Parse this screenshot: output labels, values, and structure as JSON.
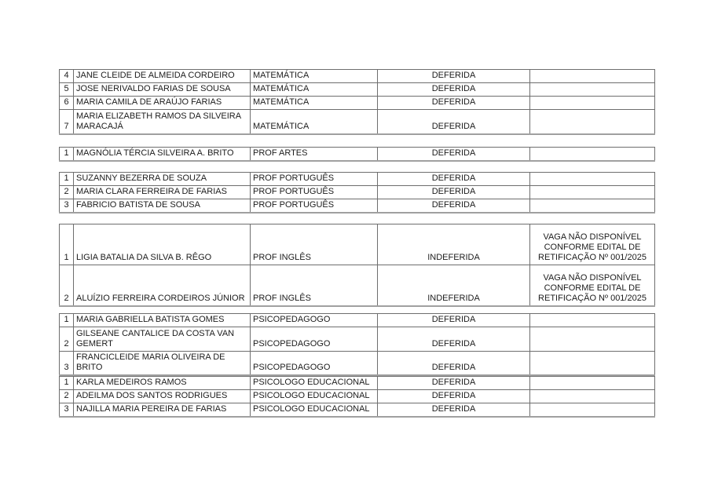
{
  "tables": [
    {
      "rows": [
        {
          "num": "4",
          "nome": "JANE CLEIDE DE ALMEIDA CORDEIRO",
          "cargo": "MATEMÁTICA",
          "situacao": "DEFERIDA",
          "obs": ""
        },
        {
          "num": "5",
          "nome": "JOSE NERIVALDO FARIAS DE SOUSA",
          "cargo": "MATEMÁTICA",
          "situacao": "DEFERIDA",
          "obs": ""
        },
        {
          "num": "6",
          "nome": "MARIA CAMILA DE ARAÚJO FARIAS",
          "cargo": "MATEMÁTICA",
          "situacao": "DEFERIDA",
          "obs": ""
        },
        {
          "num": "7",
          "nome": "MARIA ELIZABETH RAMOS DA SILVEIRA MARACAJÁ",
          "cargo": "MATEMÁTICA",
          "situacao": "DEFERIDA",
          "obs": ""
        }
      ]
    },
    {
      "rows": [
        {
          "num": "1",
          "nome": "MAGNÓLIA TÉRCIA SILVEIRA A. BRITO",
          "cargo": "PROF ARTES",
          "situacao": "DEFERIDA",
          "obs": ""
        }
      ]
    },
    {
      "rows": [
        {
          "num": "1",
          "nome": "SUZANNY BEZERRA DE SOUZA",
          "cargo": "PROF PORTUGUÊS",
          "situacao": "DEFERIDA",
          "obs": ""
        },
        {
          "num": "2",
          "nome": "MARIA CLARA FERREIRA DE FARIAS",
          "cargo": "PROF PORTUGUÊS",
          "situacao": "DEFERIDA",
          "obs": ""
        },
        {
          "num": "3",
          "nome": "FABRICIO BATISTA DE SOUSA",
          "cargo": "PROF PORTUGUÊS",
          "situacao": "DEFERIDA",
          "obs": ""
        }
      ]
    },
    {
      "rows": [
        {
          "num": "1",
          "nome": "LIGIA BATALIA DA SILVA B. RÊGO",
          "cargo": "PROF INGLÊS",
          "situacao": "INDEFERIDA",
          "obs": "VAGA NÃO DISPONÍVEL CONFORME EDITAL DE RETIFICAÇÃO Nº 001/2025"
        },
        {
          "num": "2",
          "nome": "ALUÍZIO FERREIRA CORDEIROS JÚNIOR",
          "cargo": "PROF INGLÊS",
          "situacao": "INDEFERIDA",
          "obs": "VAGA NÃO DISPONÍVEL CONFORME EDITAL DE RETIFICAÇÃO Nº 001/2025"
        }
      ]
    },
    {
      "rows": [
        {
          "num": "1",
          "nome": "MARIA GABRIELLA BATISTA GOMES",
          "cargo": "PSICOPEDAGOGO",
          "situacao": "DEFERIDA",
          "obs": ""
        },
        {
          "num": "2",
          "nome": "GILSEANE CANTALICE DA COSTA VAN GEMERT",
          "cargo": "PSICOPEDAGOGO",
          "situacao": "DEFERIDA",
          "obs": ""
        },
        {
          "num": "3",
          "nome": "FRANCICLEIDE MARIA OLIVEIRA DE BRITO",
          "cargo": "PSICOPEDAGOGO",
          "situacao": "DEFERIDA",
          "obs": ""
        }
      ]
    },
    {
      "rows": [
        {
          "num": "1",
          "nome": "KARLA MEDEIROS RAMOS",
          "cargo": "PSICOLOGO EDUCACIONAL",
          "situacao": "DEFERIDA",
          "obs": ""
        },
        {
          "num": "2",
          "nome": "ADEILMA DOS SANTOS RODRIGUES",
          "cargo": "PSICOLOGO EDUCACIONAL",
          "situacao": "DEFERIDA",
          "obs": ""
        },
        {
          "num": "3",
          "nome": "NAJILLA MARIA PEREIRA DE FARIAS",
          "cargo": "PSICOLOGO EDUCACIONAL",
          "situacao": "DEFERIDA",
          "obs": ""
        }
      ]
    }
  ]
}
